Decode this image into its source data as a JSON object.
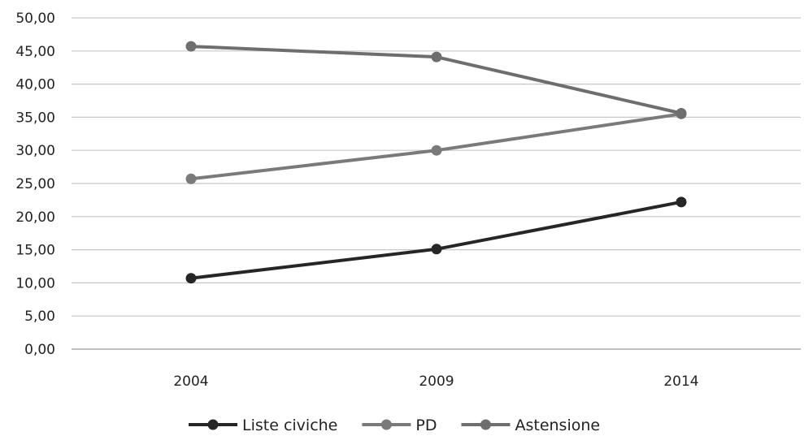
{
  "chart_data": {
    "type": "line",
    "categories": [
      "2004",
      "2009",
      "2014"
    ],
    "y_ticks": [
      "0,00",
      "5,00",
      "10,00",
      "15,00",
      "20,00",
      "25,00",
      "30,00",
      "35,00",
      "40,00",
      "45,00",
      "50,00"
    ],
    "ylim": [
      0,
      50
    ],
    "grid": true,
    "legend_position": "bottom",
    "series": [
      {
        "name": "Liste civiche",
        "values": [
          10.7,
          15.1,
          22.2
        ],
        "color": "#262626"
      },
      {
        "name": "PD",
        "values": [
          25.7,
          30.0,
          35.5
        ],
        "color": "#7a7a7a"
      },
      {
        "name": "Astensione",
        "values": [
          45.7,
          44.1,
          35.6
        ],
        "color": "#6e6e6e"
      }
    ]
  }
}
